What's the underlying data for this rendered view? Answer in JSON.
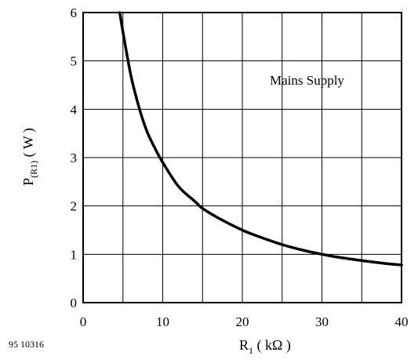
{
  "chart_data": {
    "type": "line",
    "title": "",
    "xlabel": {
      "main": "R",
      "sub": "1",
      "unit": " ( kΩ )"
    },
    "ylabel": {
      "main": "P",
      "sub": "(R1)",
      "unit": "  ( W )"
    },
    "xlim": [
      0,
      40
    ],
    "ylim": [
      0,
      6
    ],
    "xticks": [
      "0",
      "10",
      "20",
      "30",
      "40"
    ],
    "yticks": [
      "0",
      "1",
      "2",
      "3",
      "4",
      "5",
      "6"
    ],
    "x_gridlines": [
      5,
      10,
      15,
      20,
      25,
      30,
      35
    ],
    "y_gridlines": [
      1,
      2,
      3,
      4,
      5
    ],
    "grid": true,
    "legend": "none",
    "annotation": "Mains Supply",
    "series": [
      {
        "x": [
          4.6,
          5,
          6,
          7,
          8,
          9,
          10,
          12,
          14,
          15,
          17,
          20,
          22,
          25,
          28,
          30,
          32,
          35,
          38,
          40
        ],
        "y": [
          6.0,
          5.6,
          4.7,
          4.05,
          3.55,
          3.2,
          2.9,
          2.4,
          2.1,
          1.95,
          1.75,
          1.5,
          1.37,
          1.2,
          1.07,
          1.0,
          0.94,
          0.87,
          0.81,
          0.78
        ]
      }
    ],
    "color": "#000000"
  },
  "figure_id": "95 10316"
}
